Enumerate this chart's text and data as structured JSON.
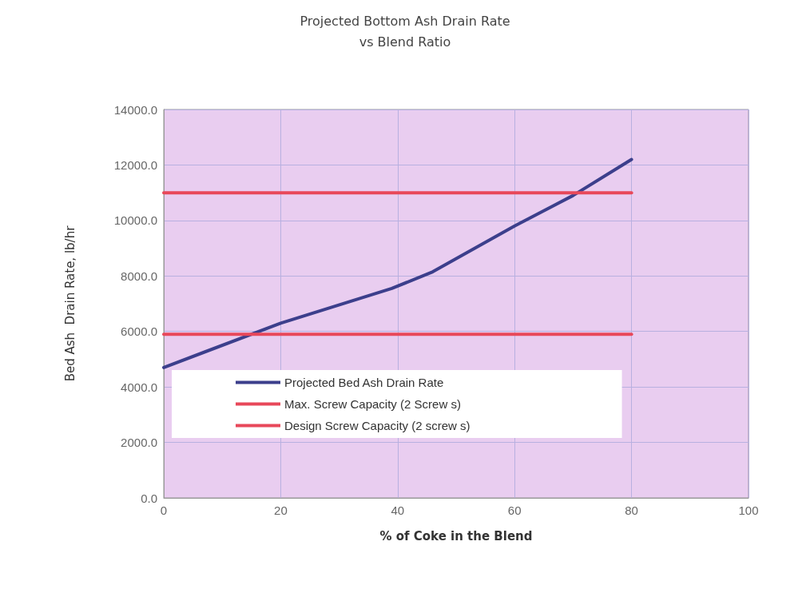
{
  "chart_data": {
    "type": "line",
    "title": "Projected Bottom Ash Drain Rate\nvs Blend Ratio",
    "xlabel": "% of Coke in the Blend",
    "ylabel": "Bed Ash  Drain Rate, lb/hr",
    "xlim": [
      0,
      100
    ],
    "xticks": [
      0,
      20,
      40,
      60,
      80,
      100
    ],
    "ylim": [
      0,
      14000
    ],
    "yticks": [
      {
        "value": 0,
        "label": "0.0"
      },
      {
        "value": 2000,
        "label": "2000.0"
      },
      {
        "value": 4000,
        "label": "4000.0"
      },
      {
        "value": 6000,
        "label": "6000.0"
      },
      {
        "value": 8000,
        "label": "8000.0"
      },
      {
        "value": 10000,
        "label": "10000.0"
      },
      {
        "value": 12000,
        "label": "12000.0"
      },
      {
        "value": 14000,
        "label": "14000.0"
      }
    ],
    "grid": true,
    "legend": "bottom left",
    "marker": "none",
    "line_style": "solid",
    "series": [
      {
        "name": "Projected Bed Ash Drain Rate",
        "color": "#3c3f8c",
        "x": [
          0,
          20,
          39,
          46,
          60,
          70,
          80
        ],
        "values": [
          4700,
          6300,
          7550,
          8150,
          9800,
          10900,
          12200
        ]
      },
      {
        "name": "Max. Screw Capacity (2 Screw s)",
        "color": "#e8485a",
        "x": [
          0,
          80
        ],
        "values": [
          11000,
          11000
        ]
      },
      {
        "name": "Design Screw Capacity (2 screw s)",
        "color": "#e8485a",
        "x": [
          0,
          80
        ],
        "values": [
          5900,
          5900
        ]
      }
    ]
  }
}
